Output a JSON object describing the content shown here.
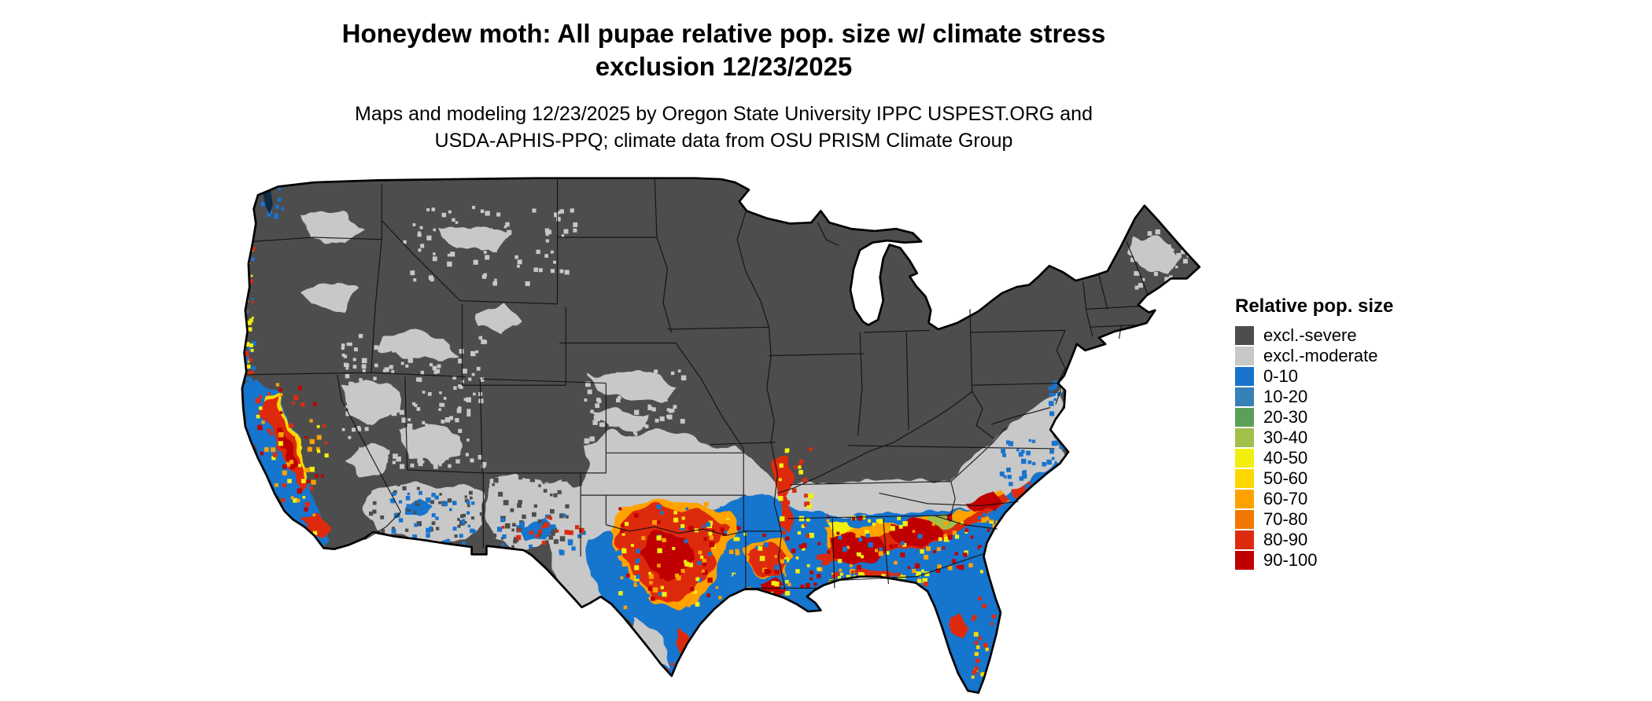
{
  "title": {
    "line1": "Honeydew moth: All pupae relative pop. size w/ climate stress",
    "line2": "exclusion 12/23/2025"
  },
  "subtitle": {
    "line1": "Maps and modeling 12/23/2025 by Oregon State University IPPC USPEST.ORG and",
    "line2": "USDA-APHIS-PPQ; climate data from OSU PRISM Climate Group"
  },
  "legend": {
    "title": "Relative pop. size",
    "items": [
      {
        "key": "excl_severe",
        "label": "excl.-severe",
        "color": "#4d4d4d"
      },
      {
        "key": "excl_moderate",
        "label": "excl.-moderate",
        "color": "#c8c8c8"
      },
      {
        "key": "b0",
        "label": "0-10",
        "color": "#1874cd"
      },
      {
        "key": "b10",
        "label": "10-20",
        "color": "#3780b8"
      },
      {
        "key": "b20",
        "label": "20-30",
        "color": "#5ba05a"
      },
      {
        "key": "b30",
        "label": "30-40",
        "color": "#a2bf4a"
      },
      {
        "key": "b40",
        "label": "40-50",
        "color": "#f2ef0f"
      },
      {
        "key": "b50",
        "label": "50-60",
        "color": "#ffd700"
      },
      {
        "key": "b60",
        "label": "60-70",
        "color": "#ffa200"
      },
      {
        "key": "b70",
        "label": "70-80",
        "color": "#f07800"
      },
      {
        "key": "b80",
        "label": "80-90",
        "color": "#dd2b10"
      },
      {
        "key": "b90",
        "label": "90-100",
        "color": "#c00000"
      }
    ]
  }
}
